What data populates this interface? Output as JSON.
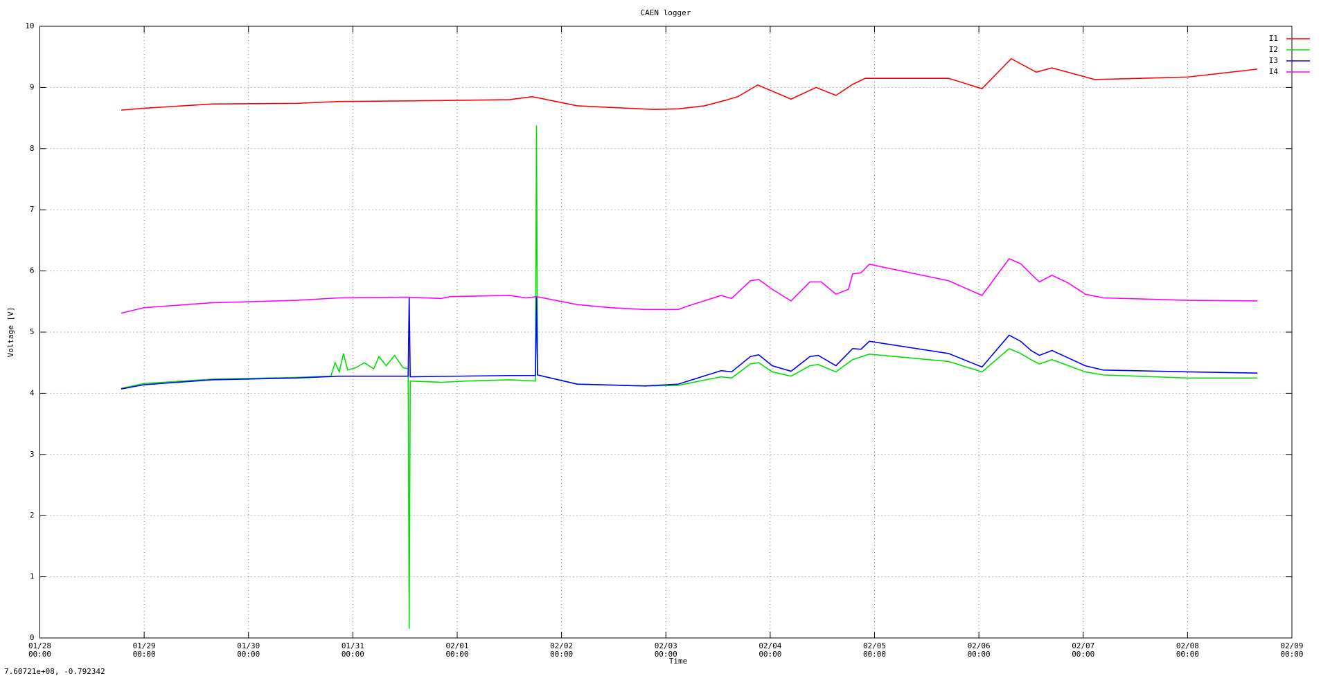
{
  "chart_data": {
    "type": "line",
    "title": "CAEN logger",
    "x_label": "Time",
    "y_label": "Voltage [V]",
    "xlim": [
      0,
      12
    ],
    "ylim": [
      0,
      10
    ],
    "xticks": [
      {
        "value": 0,
        "label": "01/28 00:00"
      },
      {
        "value": 1,
        "label": "01/29 00:00"
      },
      {
        "value": 2,
        "label": "01/30 00:00"
      },
      {
        "value": 3,
        "label": "01/31 00:00"
      },
      {
        "value": 4,
        "label": "02/01 00:00"
      },
      {
        "value": 5,
        "label": "02/02 00:00"
      },
      {
        "value": 6,
        "label": "02/03 00:00"
      },
      {
        "value": 7,
        "label": "02/04 00:00"
      },
      {
        "value": 8,
        "label": "02/05 00:00"
      },
      {
        "value": 9,
        "label": "02/06 00:00"
      },
      {
        "value": 10,
        "label": "02/07 00:00"
      },
      {
        "value": 11,
        "label": "02/08 00:00"
      },
      {
        "value": 12,
        "label": "02/09 00:00"
      }
    ],
    "yticks": [
      0,
      1,
      2,
      3,
      4,
      5,
      6,
      7,
      8,
      9,
      10
    ],
    "grid": true,
    "legend": "top right",
    "series": [
      {
        "name": "I1",
        "color": "#ff0000",
        "x": [
          0.78,
          1.0,
          1.65,
          2.46,
          2.87,
          3.52,
          4.5,
          4.72,
          5.15,
          5.88,
          6.12,
          6.37,
          6.57,
          6.69,
          6.88,
          7.2,
          7.44,
          7.63,
          7.79,
          7.91,
          8.71,
          9.03,
          9.31,
          9.55,
          9.7,
          10.11,
          11.0,
          11.67
        ],
        "values": [
          8.63,
          8.66,
          8.73,
          8.74,
          8.77,
          8.78,
          8.8,
          8.85,
          8.7,
          8.64,
          8.65,
          8.7,
          8.79,
          8.85,
          9.04,
          8.81,
          9.0,
          8.87,
          9.05,
          9.15,
          9.15,
          8.98,
          9.47,
          9.25,
          9.32,
          9.13,
          9.17,
          9.3
        ]
      },
      {
        "name": "I2",
        "color": "#00e000",
        "x": [
          0.78,
          1.0,
          1.65,
          2.46,
          2.79,
          2.83,
          2.87,
          2.91,
          2.95,
          3.03,
          3.11,
          3.2,
          3.25,
          3.32,
          3.4,
          3.48,
          3.53,
          3.54,
          3.55,
          3.85,
          4.09,
          4.5,
          4.75,
          4.76,
          4.77,
          5.15,
          5.8,
          6.12,
          6.53,
          6.63,
          6.81,
          6.89,
          7.02,
          7.2,
          7.38,
          7.46,
          7.63,
          7.79,
          7.95,
          8.71,
          9.03,
          9.29,
          9.4,
          9.5,
          9.58,
          9.7,
          10.02,
          10.19,
          11.0,
          11.67
        ],
        "values": [
          4.08,
          4.16,
          4.23,
          4.26,
          4.28,
          4.5,
          4.35,
          4.65,
          4.38,
          4.42,
          4.5,
          4.4,
          4.6,
          4.45,
          4.62,
          4.42,
          4.4,
          0.15,
          4.2,
          4.18,
          4.2,
          4.22,
          4.2,
          8.38,
          4.3,
          4.15,
          4.12,
          4.13,
          4.27,
          4.25,
          4.48,
          4.5,
          4.35,
          4.28,
          4.45,
          4.47,
          4.35,
          4.55,
          4.64,
          4.52,
          4.35,
          4.73,
          4.65,
          4.55,
          4.48,
          4.55,
          4.35,
          4.3,
          4.25,
          4.25
        ]
      },
      {
        "name": "I3",
        "color": "#0000ff",
        "x": [
          0.78,
          1.0,
          1.65,
          2.46,
          2.87,
          3.53,
          3.54,
          3.55,
          4.5,
          4.75,
          4.76,
          4.77,
          5.15,
          5.8,
          6.12,
          6.53,
          6.63,
          6.81,
          6.89,
          7.02,
          7.2,
          7.38,
          7.46,
          7.63,
          7.79,
          7.87,
          7.95,
          8.71,
          9.03,
          9.29,
          9.4,
          9.5,
          9.58,
          9.7,
          10.02,
          10.19,
          11.0,
          11.67
        ],
        "values": [
          4.07,
          4.14,
          4.22,
          4.25,
          4.28,
          4.28,
          5.57,
          4.27,
          4.29,
          4.29,
          5.57,
          4.3,
          4.15,
          4.12,
          4.15,
          4.37,
          4.35,
          4.6,
          4.63,
          4.45,
          4.36,
          4.6,
          4.62,
          4.45,
          4.73,
          4.72,
          4.85,
          4.65,
          4.43,
          4.95,
          4.85,
          4.7,
          4.62,
          4.7,
          4.45,
          4.38,
          4.35,
          4.33
        ]
      },
      {
        "name": "I4",
        "color": "#ff00ff",
        "x": [
          0.78,
          1.0,
          1.65,
          2.46,
          2.87,
          3.52,
          3.85,
          3.93,
          4.5,
          4.66,
          4.76,
          5.15,
          5.47,
          5.8,
          6.12,
          6.2,
          6.53,
          6.63,
          6.81,
          6.89,
          7.02,
          7.2,
          7.38,
          7.49,
          7.63,
          7.75,
          7.79,
          7.87,
          7.95,
          8.71,
          9.03,
          9.29,
          9.4,
          9.5,
          9.58,
          9.7,
          9.86,
          10.02,
          10.19,
          11.0,
          11.67
        ],
        "values": [
          5.31,
          5.4,
          5.48,
          5.52,
          5.56,
          5.57,
          5.55,
          5.58,
          5.6,
          5.56,
          5.58,
          5.45,
          5.4,
          5.37,
          5.37,
          5.42,
          5.6,
          5.55,
          5.84,
          5.86,
          5.7,
          5.51,
          5.82,
          5.82,
          5.62,
          5.7,
          5.95,
          5.97,
          6.11,
          5.84,
          5.6,
          6.2,
          6.12,
          5.95,
          5.82,
          5.93,
          5.8,
          5.62,
          5.56,
          5.52,
          5.51
        ]
      }
    ]
  },
  "status": "7.60721e+08, -0.792342"
}
